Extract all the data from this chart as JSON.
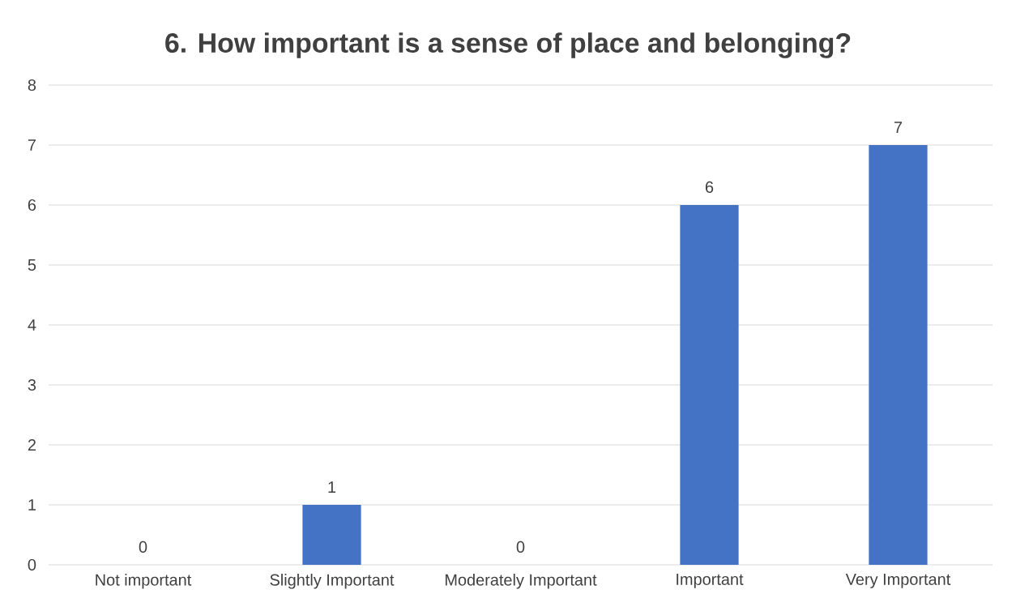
{
  "chart_data": {
    "type": "bar",
    "title": "6. How important is a sense of place and belonging?",
    "categories": [
      "Not important",
      "Slightly Important",
      "Moderately Important",
      "Important",
      "Very Important"
    ],
    "values": [
      0,
      1,
      0,
      6,
      7
    ],
    "color": "#4472c4",
    "ylim": [
      0,
      8
    ],
    "yticks": [
      0,
      1,
      2,
      3,
      4,
      5,
      6,
      7,
      8
    ],
    "grid": "y",
    "data_labels": true
  }
}
